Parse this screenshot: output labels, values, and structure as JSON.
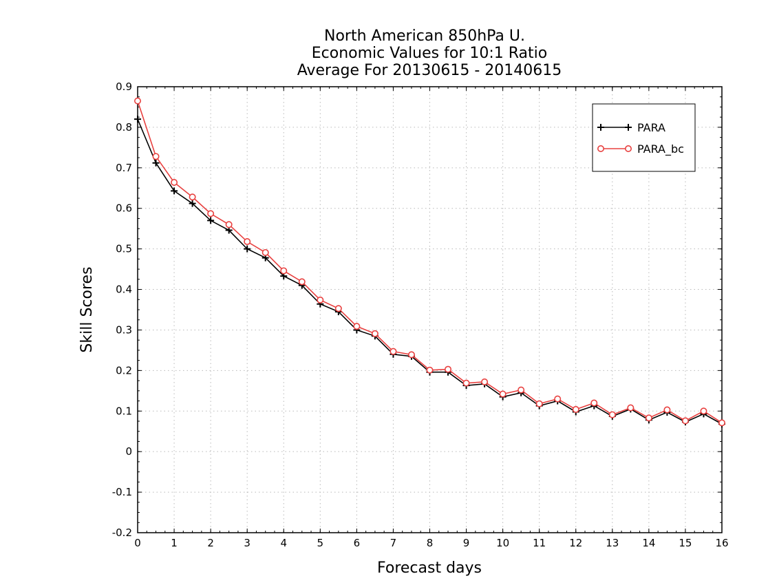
{
  "chart_data": {
    "type": "line",
    "title_lines": [
      "North American 850hPa U.",
      "Economic Values for 10:1 Ratio",
      "Average For 20130615 - 20140615"
    ],
    "xlabel": "Forecast days",
    "ylabel": "Skill Scores",
    "xlim": [
      0,
      16
    ],
    "ylim": [
      -0.2,
      0.9
    ],
    "x_ticks": [
      0,
      1,
      2,
      3,
      4,
      5,
      6,
      7,
      8,
      9,
      10,
      11,
      12,
      13,
      14,
      15,
      16
    ],
    "y_ticks": [
      -0.2,
      -0.1,
      0,
      0.1,
      0.2,
      0.3,
      0.4,
      0.5,
      0.6,
      0.7,
      0.8,
      0.9
    ],
    "grid": true,
    "legend_position": "top-right",
    "x": [
      0,
      0.5,
      1,
      1.5,
      2,
      2.5,
      3,
      3.5,
      4,
      4.5,
      5,
      5.5,
      6,
      6.5,
      7,
      7.5,
      8,
      8.5,
      9,
      9.5,
      10,
      10.5,
      11,
      11.5,
      12,
      12.5,
      13,
      13.5,
      14,
      14.5,
      15,
      15.5,
      16
    ],
    "series": [
      {
        "name": "PARA",
        "color": "#000000",
        "marker": "plus",
        "values": [
          0.82,
          0.712,
          0.643,
          0.612,
          0.57,
          0.546,
          0.5,
          0.478,
          0.433,
          0.41,
          0.364,
          0.345,
          0.3,
          0.285,
          0.24,
          0.235,
          0.196,
          0.196,
          0.163,
          0.167,
          0.135,
          0.145,
          0.113,
          0.125,
          0.098,
          0.113,
          0.087,
          0.105,
          0.078,
          0.097,
          0.073,
          0.093,
          0.068
        ]
      },
      {
        "name": "PARA_bc",
        "color": "#e8403f",
        "marker": "circle",
        "values": [
          0.865,
          0.728,
          0.664,
          0.628,
          0.587,
          0.56,
          0.518,
          0.491,
          0.446,
          0.419,
          0.374,
          0.353,
          0.309,
          0.291,
          0.247,
          0.239,
          0.201,
          0.203,
          0.169,
          0.172,
          0.142,
          0.152,
          0.118,
          0.13,
          0.104,
          0.12,
          0.091,
          0.108,
          0.083,
          0.103,
          0.076,
          0.1,
          0.071
        ]
      }
    ]
  }
}
